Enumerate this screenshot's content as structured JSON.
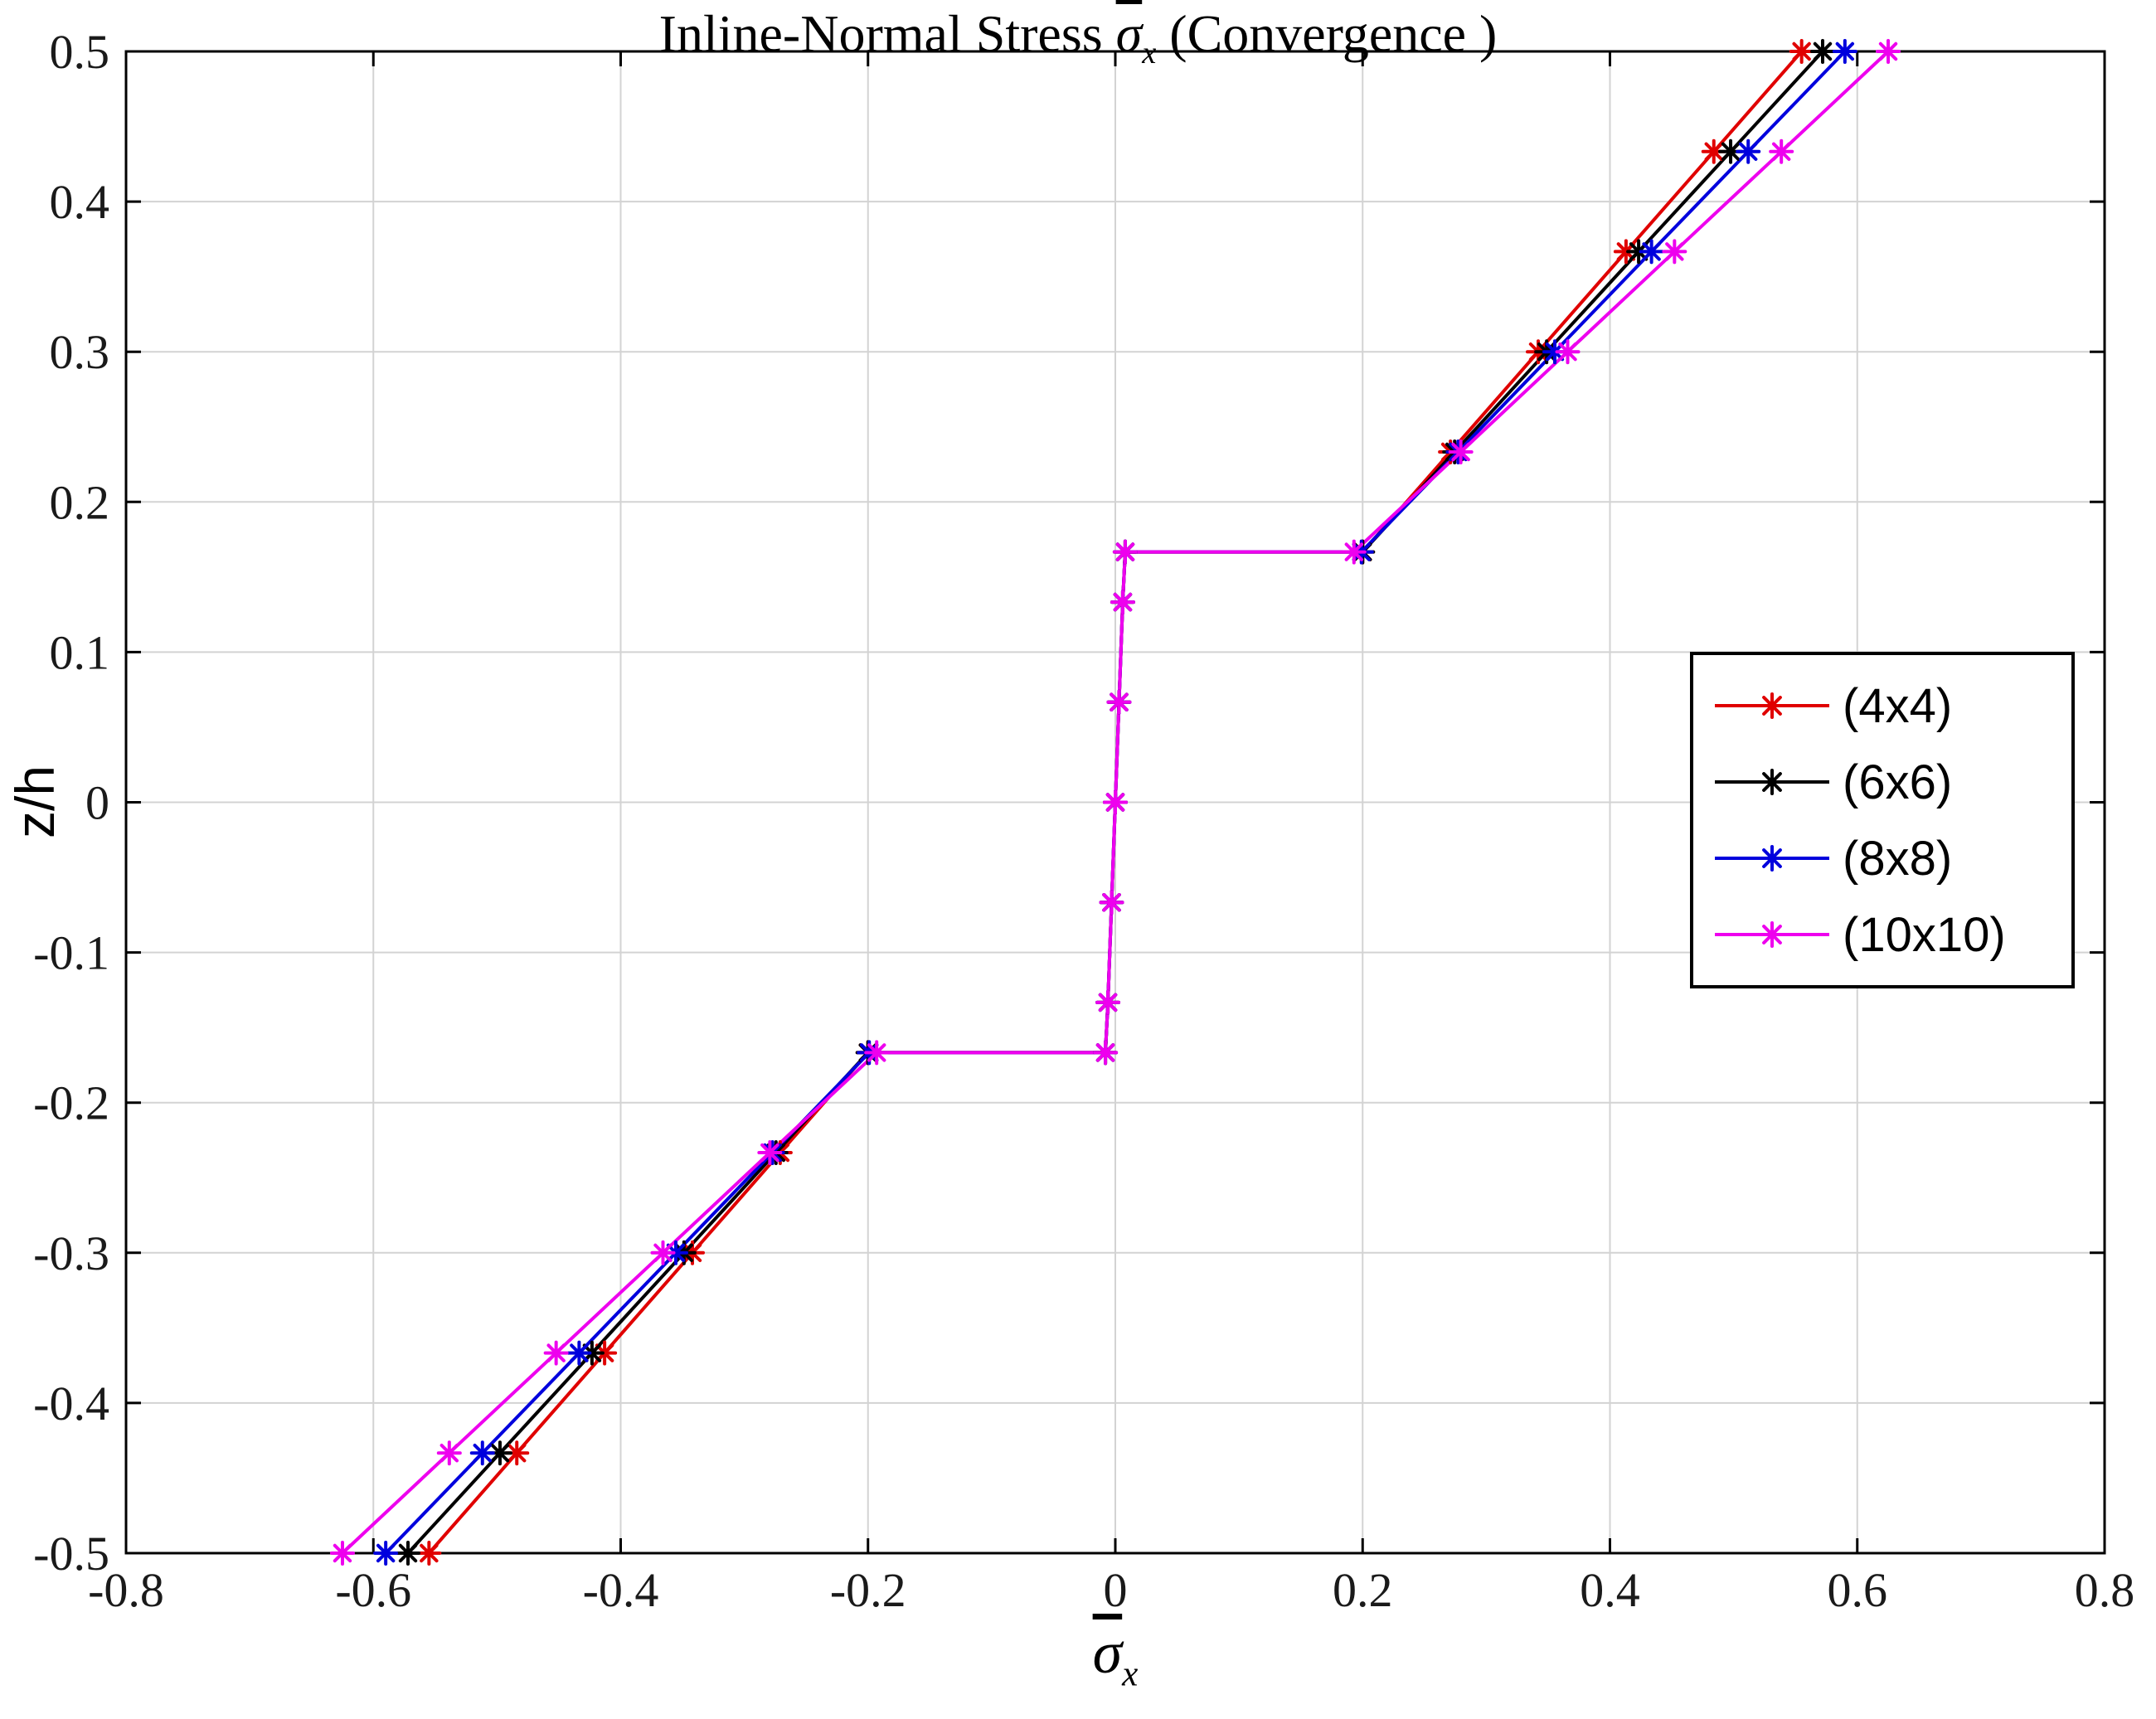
{
  "chart_data": {
    "type": "line",
    "title": "Inline-Normal Stress σ̄_x (Convergence )",
    "title_parts": {
      "prefix": "Inline-Normal Stress ",
      "sigma": "σ",
      "sub": "x",
      "suffix": " (Convergence )"
    },
    "xlabel": "σ̄_x",
    "xlabel_parts": {
      "sigma": "σ",
      "sub": "x"
    },
    "ylabel": "z/h",
    "xlim": [
      -0.8,
      0.8
    ],
    "ylim": [
      -0.5,
      0.5
    ],
    "grid": true,
    "legend_position": "right-middle",
    "xticks": {
      "values": [
        -0.8,
        -0.6,
        -0.4,
        -0.2,
        0,
        0.2,
        0.4,
        0.6,
        0.8
      ],
      "labels": [
        "-0.8",
        "-0.6",
        "-0.4",
        "-0.2",
        "0",
        "0.2",
        "0.4",
        "0.6",
        "0.8"
      ]
    },
    "yticks": {
      "values": [
        0.5,
        0.4,
        0.3,
        0.2,
        0.1,
        0,
        -0.1,
        -0.2,
        -0.3,
        -0.4,
        -0.5
      ],
      "labels": [
        "0.5",
        "0.4",
        "0.3",
        "0.2",
        "0.1",
        "0",
        "-0.1",
        "-0.2",
        "-0.3",
        "-0.4",
        "-0.5"
      ]
    },
    "z": [
      -0.5,
      -0.4333,
      -0.3667,
      -0.3,
      -0.2333,
      -0.1667,
      -0.1667,
      -0.1333,
      -0.0667,
      0,
      0.0667,
      0.1333,
      0.1667,
      0.1667,
      0.2333,
      0.3,
      0.3667,
      0.4333,
      0.5
    ],
    "series": [
      {
        "name": "(4x4)",
        "color": "#e00000",
        "marker": "*",
        "x": [
          -0.555,
          -0.484,
          -0.413,
          -0.342,
          -0.271,
          -0.2,
          -0.008,
          -0.006,
          -0.003,
          0,
          0.003,
          0.006,
          0.008,
          0.2,
          0.271,
          0.342,
          0.413,
          0.484,
          0.555
        ]
      },
      {
        "name": "(6x6)",
        "color": "#000000",
        "marker": "*",
        "x": [
          -0.572,
          -0.4976,
          -0.4232,
          -0.3488,
          -0.2744,
          -0.2,
          -0.008,
          -0.006,
          -0.003,
          0,
          0.003,
          0.006,
          0.008,
          0.2,
          0.2744,
          0.3488,
          0.4232,
          0.4976,
          0.572
        ]
      },
      {
        "name": "(8x8)",
        "color": "#0000dd",
        "marker": "*",
        "x": [
          -0.59,
          -0.5118,
          -0.4336,
          -0.3554,
          -0.2772,
          -0.199,
          -0.008,
          -0.006,
          -0.003,
          0,
          0.003,
          0.006,
          0.008,
          0.199,
          0.2772,
          0.3554,
          0.4336,
          0.5118,
          0.59
        ]
      },
      {
        "name": "(10x10)",
        "color": "#ee00ee",
        "marker": "*",
        "x": [
          -0.625,
          -0.5386,
          -0.4522,
          -0.3658,
          -0.2794,
          -0.193,
          -0.008,
          -0.006,
          -0.003,
          0,
          0.003,
          0.006,
          0.008,
          0.193,
          0.2794,
          0.3658,
          0.4522,
          0.5386,
          0.625
        ]
      }
    ],
    "style": {
      "grid_color": "#d3d3d3",
      "axes_color": "#000000",
      "tick_label_color": "#1a1a1a"
    }
  }
}
